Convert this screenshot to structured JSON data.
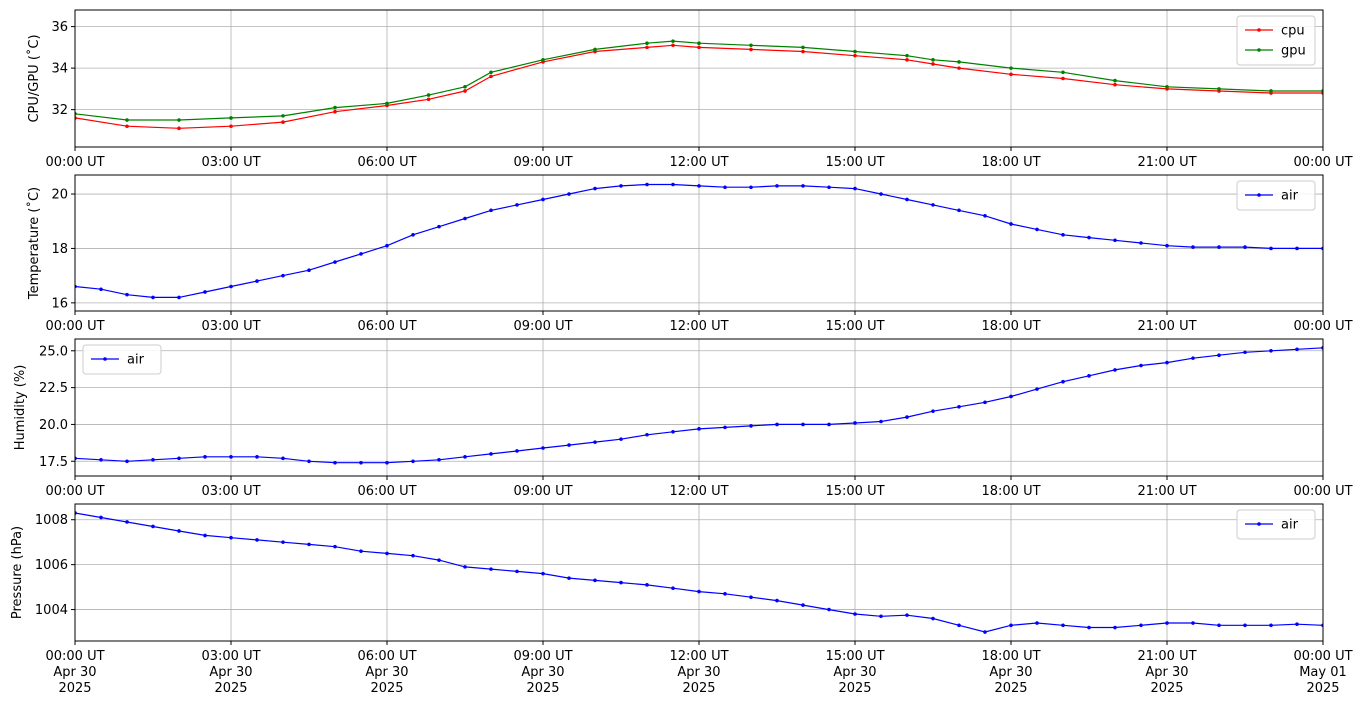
{
  "figure": {
    "x_tick_labels": [
      "00:00 UT",
      "03:00 UT",
      "06:00 UT",
      "09:00 UT",
      "12:00 UT",
      "15:00 UT",
      "18:00 UT",
      "21:00 UT",
      "00:00 UT"
    ],
    "bottom_date_labels": [
      [
        "Apr 30",
        "2025"
      ],
      [
        "Apr 30",
        "2025"
      ],
      [
        "Apr 30",
        "2025"
      ],
      [
        "Apr 30",
        "2025"
      ],
      [
        "Apr 30",
        "2025"
      ],
      [
        "Apr 30",
        "2025"
      ],
      [
        "Apr 30",
        "2025"
      ],
      [
        "Apr 30",
        "2025"
      ],
      [
        "May 01",
        "2025"
      ]
    ]
  },
  "chart_data": [
    {
      "type": "line",
      "ylabel": "CPU/GPU (˚C)",
      "xlim": [
        0,
        24
      ],
      "ylim": [
        30.2,
        36.8
      ],
      "yticks": [
        32,
        34,
        36
      ],
      "grid": true,
      "legend": "top-right",
      "series": [
        {
          "name": "cpu",
          "color": "#ff0000",
          "x": [
            0,
            1,
            2,
            3,
            4,
            5,
            6,
            6.8,
            7.5,
            8,
            9,
            10,
            11,
            11.5,
            12,
            13,
            14,
            15,
            16,
            16.5,
            17,
            18,
            19,
            20,
            21,
            22,
            23,
            24
          ],
          "y": [
            31.6,
            31.2,
            31.1,
            31.2,
            31.4,
            31.9,
            32.2,
            32.5,
            32.9,
            33.6,
            34.3,
            34.8,
            35.0,
            35.1,
            35.0,
            34.9,
            34.8,
            34.6,
            34.4,
            34.2,
            34.0,
            33.7,
            33.5,
            33.2,
            33.0,
            32.9,
            32.8,
            32.8
          ]
        },
        {
          "name": "gpu",
          "color": "#008000",
          "x": [
            0,
            1,
            2,
            3,
            4,
            5,
            6,
            6.8,
            7.5,
            8,
            9,
            10,
            11,
            11.5,
            12,
            13,
            14,
            15,
            16,
            16.5,
            17,
            18,
            19,
            20,
            21,
            22,
            23,
            24
          ],
          "y": [
            31.8,
            31.5,
            31.5,
            31.6,
            31.7,
            32.1,
            32.3,
            32.7,
            33.1,
            33.8,
            34.4,
            34.9,
            35.2,
            35.3,
            35.2,
            35.1,
            35.0,
            34.8,
            34.6,
            34.4,
            34.3,
            34.0,
            33.8,
            33.4,
            33.1,
            33.0,
            32.9,
            32.9
          ]
        }
      ]
    },
    {
      "type": "line",
      "ylabel": "Temperature (˚C)",
      "xlim": [
        0,
        24
      ],
      "ylim": [
        15.7,
        20.7
      ],
      "yticks": [
        16,
        18,
        20
      ],
      "grid": true,
      "legend": "top-right",
      "series": [
        {
          "name": "air",
          "color": "#0000ff",
          "x": [
            0,
            0.5,
            1,
            1.5,
            2,
            2.5,
            3,
            3.5,
            4,
            4.5,
            5,
            5.5,
            6,
            6.5,
            7,
            7.5,
            8,
            8.5,
            9,
            9.5,
            10,
            10.5,
            11,
            11.5,
            12,
            12.5,
            13,
            13.5,
            14,
            14.5,
            15,
            15.5,
            16,
            16.5,
            17,
            17.5,
            18,
            18.5,
            19,
            19.5,
            20,
            20.5,
            21,
            21.5,
            22,
            22.5,
            23,
            23.5,
            24
          ],
          "y": [
            16.6,
            16.5,
            16.3,
            16.2,
            16.2,
            16.4,
            16.6,
            16.8,
            17.0,
            17.2,
            17.5,
            17.8,
            18.1,
            18.5,
            18.8,
            19.1,
            19.4,
            19.6,
            19.8,
            20.0,
            20.2,
            20.3,
            20.35,
            20.35,
            20.3,
            20.25,
            20.25,
            20.3,
            20.3,
            20.25,
            20.2,
            20.0,
            19.8,
            19.6,
            19.4,
            19.2,
            18.9,
            18.7,
            18.5,
            18.4,
            18.3,
            18.2,
            18.1,
            18.05,
            18.05,
            18.05,
            18.0,
            18.0,
            18.0
          ]
        }
      ]
    },
    {
      "type": "line",
      "ylabel": "Humidity (%)",
      "xlim": [
        0,
        24
      ],
      "ylim": [
        16.5,
        25.8
      ],
      "yticks": [
        17.5,
        20.0,
        22.5,
        25.0
      ],
      "grid": true,
      "legend": "top-left",
      "series": [
        {
          "name": "air",
          "color": "#0000ff",
          "x": [
            0,
            0.5,
            1,
            1.5,
            2,
            2.5,
            3,
            3.5,
            4,
            4.5,
            5,
            5.5,
            6,
            6.5,
            7,
            7.5,
            8,
            8.5,
            9,
            9.5,
            10,
            10.5,
            11,
            11.5,
            12,
            12.5,
            13,
            13.5,
            14,
            14.5,
            15,
            15.5,
            16,
            16.5,
            17,
            17.5,
            18,
            18.5,
            19,
            19.5,
            20,
            20.5,
            21,
            21.5,
            22,
            22.5,
            23,
            23.5,
            24
          ],
          "y": [
            17.7,
            17.6,
            17.5,
            17.6,
            17.7,
            17.8,
            17.8,
            17.8,
            17.7,
            17.5,
            17.4,
            17.4,
            17.4,
            17.5,
            17.6,
            17.8,
            18.0,
            18.2,
            18.4,
            18.6,
            18.8,
            19.0,
            19.3,
            19.5,
            19.7,
            19.8,
            19.9,
            20.0,
            20.0,
            20.0,
            20.1,
            20.2,
            20.5,
            20.9,
            21.2,
            21.5,
            21.9,
            22.4,
            22.9,
            23.3,
            23.7,
            24.0,
            24.2,
            24.5,
            24.7,
            24.9,
            25.0,
            25.1,
            25.2
          ]
        }
      ]
    },
    {
      "type": "line",
      "ylabel": "Pressure (hPa)",
      "xlim": [
        0,
        24
      ],
      "ylim": [
        1002.6,
        1008.7
      ],
      "yticks": [
        1004,
        1006,
        1008
      ],
      "grid": true,
      "legend": "top-right",
      "series": [
        {
          "name": "air",
          "color": "#0000ff",
          "x": [
            0,
            0.5,
            1,
            1.5,
            2,
            2.5,
            3,
            3.5,
            4,
            4.5,
            5,
            5.5,
            6,
            6.5,
            7,
            7.5,
            8,
            8.5,
            9,
            9.5,
            10,
            10.5,
            11,
            11.5,
            12,
            12.5,
            13,
            13.5,
            14,
            14.5,
            15,
            15.5,
            16,
            16.5,
            17,
            17.5,
            18,
            18.5,
            19,
            19.5,
            20,
            20.5,
            21,
            21.5,
            22,
            22.5,
            23,
            23.5,
            24
          ],
          "y": [
            1008.3,
            1008.1,
            1007.9,
            1007.7,
            1007.5,
            1007.3,
            1007.2,
            1007.1,
            1007.0,
            1006.9,
            1006.8,
            1006.6,
            1006.5,
            1006.4,
            1006.2,
            1005.9,
            1005.8,
            1005.7,
            1005.6,
            1005.4,
            1005.3,
            1005.2,
            1005.1,
            1004.95,
            1004.8,
            1004.7,
            1004.55,
            1004.4,
            1004.2,
            1004.0,
            1003.8,
            1003.7,
            1003.75,
            1003.6,
            1003.3,
            1003.0,
            1003.3,
            1003.4,
            1003.3,
            1003.2,
            1003.2,
            1003.3,
            1003.4,
            1003.4,
            1003.3,
            1003.3,
            1003.3,
            1003.35,
            1003.3
          ]
        }
      ]
    }
  ]
}
